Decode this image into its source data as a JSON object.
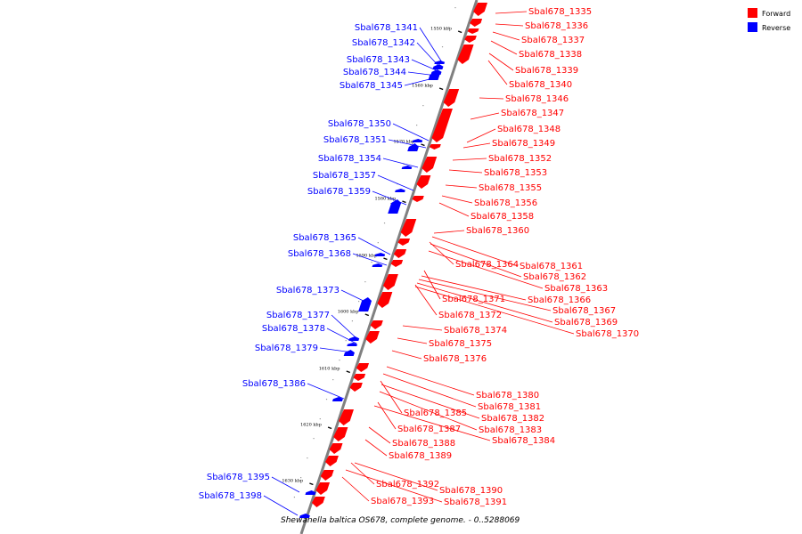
{
  "caption": "Shewanella baltica OS678, complete genome. - 0..5288069",
  "legend": [
    {
      "label": "Forward",
      "color": "#ff0000"
    },
    {
      "label": "Reverse",
      "color": "#0000ff"
    }
  ],
  "colors": {
    "forward": "#ff0000",
    "reverse": "#0000ff",
    "backbone": "#808080",
    "leader": "#ff0000",
    "leader_reverse": "#0000ff"
  },
  "ticks": [
    {
      "label": "1550 kbp"
    },
    {
      "label": "1560 kbp"
    },
    {
      "label": "1570 kbp"
    },
    {
      "label": "1580 kbp"
    },
    {
      "label": "1590 kbp"
    },
    {
      "label": "1600 kbp"
    },
    {
      "label": "1610 kbp"
    },
    {
      "label": "1620 kbp"
    },
    {
      "label": "1630 kbp"
    }
  ],
  "forward_labels": [
    "Sbal678_1335",
    "Sbal678_1336",
    "Sbal678_1337",
    "Sbal678_1338",
    "Sbal678_1339",
    "Sbal678_1340",
    "Sbal678_1346",
    "Sbal678_1347",
    "Sbal678_1348",
    "Sbal678_1349",
    "Sbal678_1352",
    "Sbal678_1353",
    "Sbal678_1355",
    "Sbal678_1356",
    "Sbal678_1358",
    "Sbal678_1360",
    "Sbal678_1364",
    "Sbal678_1361",
    "Sbal678_1362",
    "Sbal678_1363",
    "Sbal678_1371",
    "Sbal678_1366",
    "Sbal678_1367",
    "Sbal678_1372",
    "Sbal678_1369",
    "Sbal678_1370",
    "Sbal678_1374",
    "Sbal678_1375",
    "Sbal678_1376",
    "Sbal678_1380",
    "Sbal678_1381",
    "Sbal678_1385",
    "Sbal678_1382",
    "Sbal678_1387",
    "Sbal678_1383",
    "Sbal678_1384",
    "Sbal678_1388",
    "Sbal678_1389",
    "Sbal678_1392",
    "Sbal678_1390",
    "Sbal678_1393",
    "Sbal678_1391"
  ],
  "reverse_labels": [
    "Sbal678_1341",
    "Sbal678_1342",
    "Sbal678_1343",
    "Sbal678_1344",
    "Sbal678_1345",
    "Sbal678_1350",
    "Sbal678_1351",
    "Sbal678_1354",
    "Sbal678_1357",
    "Sbal678_1359",
    "Sbal678_1365",
    "Sbal678_1368",
    "Sbal678_1373",
    "Sbal678_1377",
    "Sbal678_1378",
    "Sbal678_1379",
    "Sbal678_1386",
    "Sbal678_1395",
    "Sbal678_1398"
  ]
}
